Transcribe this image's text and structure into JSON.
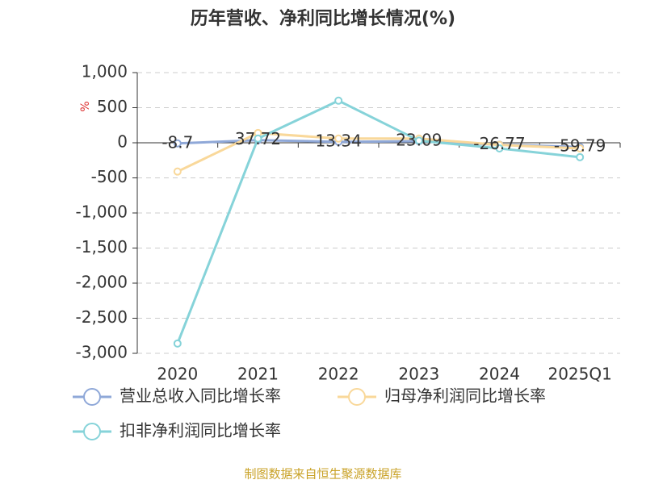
{
  "chart_data": {
    "type": "line",
    "title": "历年营收、净利同比增长情况(%)",
    "y_label": "%",
    "categories": [
      "2020",
      "2021",
      "2022",
      "2023",
      "2024",
      "2025Q1"
    ],
    "series": [
      {
        "name": "营业总收入同比增长率",
        "color": "#8fa8d8",
        "values": [
          -8.7,
          37.72,
          13.34,
          23.09,
          -26.77,
          -59.79
        ],
        "data_labels": true
      },
      {
        "name": "归母净利润同比增长率",
        "color": "#f9d89a",
        "values": [
          -410,
          140,
          60,
          60,
          -30,
          -80
        ]
      },
      {
        "name": "扣非净利润同比增长率",
        "color": "#86d3d9",
        "values": [
          -2860,
          60,
          600,
          30,
          -80,
          -205
        ]
      }
    ],
    "ylim": [
      -3000,
      1000
    ],
    "yticks": [
      {
        "value": 1000,
        "label": "1,000"
      },
      500,
      0,
      -500,
      {
        "value": -1000,
        "label": "-1,000"
      },
      {
        "value": -1500,
        "label": "-1,500"
      },
      {
        "value": -2000,
        "label": "-2,000"
      },
      {
        "value": -2500,
        "label": "-2,500"
      },
      {
        "value": -3000,
        "label": "-3,000"
      }
    ],
    "grid": true,
    "source": "制图数据来自恒生聚源数据库"
  }
}
